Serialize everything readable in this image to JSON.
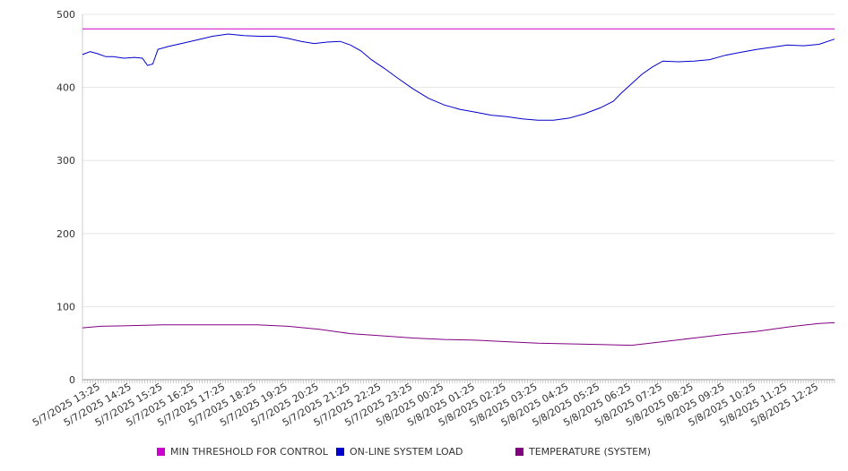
{
  "chart_data": {
    "type": "line",
    "title": "",
    "xlabel": "",
    "ylabel": "",
    "ylim": [
      0,
      500
    ],
    "yticks": [
      0,
      100,
      200,
      300,
      400,
      500
    ],
    "grid": true,
    "legend_placement": "bottom",
    "x_tick_labels": [
      "5/7/2025 13:25",
      "5/7/2025 14:25",
      "5/7/2025 15:25",
      "5/7/2025 16:25",
      "5/7/2025 17:25",
      "5/7/2025 18:25",
      "5/7/2025 19:25",
      "5/7/2025 20:25",
      "5/7/2025 21:25",
      "5/7/2025 22:25",
      "5/7/2025 23:25",
      "5/8/2025 00:25",
      "5/8/2025 01:25",
      "5/8/2025 02:25",
      "5/8/2025 03:25",
      "5/8/2025 04:25",
      "5/8/2025 05:25",
      "5/8/2025 06:25",
      "5/8/2025 07:25",
      "5/8/2025 08:25",
      "5/8/2025 09:25",
      "5/8/2025 10:25",
      "5/8/2025 11:25",
      "5/8/2025 12:25"
    ],
    "series": [
      {
        "name": "MIN THRESHOLD FOR CONTROL",
        "color": "#cc00cc",
        "points": [
          [
            "5/7/2025 12:50",
            480
          ],
          [
            "5/8/2025 12:55",
            480
          ]
        ]
      },
      {
        "name": "ON-LINE SYSTEM LOAD",
        "color": "#0000cc",
        "points": [
          [
            "5/7/2025 12:50",
            445
          ],
          [
            "5/7/2025 13:05",
            449
          ],
          [
            "5/7/2025 13:20",
            446
          ],
          [
            "5/7/2025 13:35",
            442
          ],
          [
            "5/7/2025 13:50",
            442
          ],
          [
            "5/7/2025 14:10",
            440
          ],
          [
            "5/7/2025 14:30",
            441
          ],
          [
            "5/7/2025 14:45",
            440
          ],
          [
            "5/7/2025 14:55",
            430
          ],
          [
            "5/7/2025 15:05",
            432
          ],
          [
            "5/7/2025 15:15",
            452
          ],
          [
            "5/7/2025 15:35",
            456
          ],
          [
            "5/7/2025 16:00",
            460
          ],
          [
            "5/7/2025 16:30",
            465
          ],
          [
            "5/7/2025 17:00",
            470
          ],
          [
            "5/7/2025 17:30",
            473
          ],
          [
            "5/7/2025 18:00",
            471
          ],
          [
            "5/7/2025 18:30",
            470
          ],
          [
            "5/7/2025 19:00",
            470
          ],
          [
            "5/7/2025 19:25",
            467
          ],
          [
            "5/7/2025 19:50",
            463
          ],
          [
            "5/7/2025 20:15",
            460
          ],
          [
            "5/7/2025 20:40",
            462
          ],
          [
            "5/7/2025 21:05",
            463
          ],
          [
            "5/7/2025 21:25",
            458
          ],
          [
            "5/7/2025 21:45",
            450
          ],
          [
            "5/7/2025 22:05",
            438
          ],
          [
            "5/7/2025 22:30",
            426
          ],
          [
            "5/7/2025 22:55",
            413
          ],
          [
            "5/7/2025 23:25",
            398
          ],
          [
            "5/7/2025 23:55",
            385
          ],
          [
            "5/8/2025 00:25",
            376
          ],
          [
            "5/8/2025 00:55",
            370
          ],
          [
            "5/8/2025 01:25",
            366
          ],
          [
            "5/8/2025 01:55",
            362
          ],
          [
            "5/8/2025 02:25",
            360
          ],
          [
            "5/8/2025 02:55",
            357
          ],
          [
            "5/8/2025 03:25",
            355
          ],
          [
            "5/8/2025 03:55",
            355
          ],
          [
            "5/8/2025 04:25",
            358
          ],
          [
            "5/8/2025 04:55",
            364
          ],
          [
            "5/8/2025 05:25",
            372
          ],
          [
            "5/8/2025 05:50",
            381
          ],
          [
            "5/8/2025 06:05",
            392
          ],
          [
            "5/8/2025 06:25",
            405
          ],
          [
            "5/8/2025 06:45",
            418
          ],
          [
            "5/8/2025 07:05",
            428
          ],
          [
            "5/8/2025 07:25",
            436
          ],
          [
            "5/8/2025 07:55",
            435
          ],
          [
            "5/8/2025 08:25",
            436
          ],
          [
            "5/8/2025 08:55",
            438
          ],
          [
            "5/8/2025 09:25",
            444
          ],
          [
            "5/8/2025 09:55",
            448
          ],
          [
            "5/8/2025 10:25",
            452
          ],
          [
            "5/8/2025 10:55",
            455
          ],
          [
            "5/8/2025 11:25",
            458
          ],
          [
            "5/8/2025 11:55",
            457
          ],
          [
            "5/8/2025 12:25",
            459
          ],
          [
            "5/8/2025 12:55",
            466
          ]
        ]
      },
      {
        "name": "TEMPERATURE (SYSTEM)",
        "color": "#800080",
        "points": [
          [
            "5/7/2025 12:50",
            71
          ],
          [
            "5/7/2025 13:25",
            73
          ],
          [
            "5/7/2025 14:25",
            74
          ],
          [
            "5/7/2025 15:25",
            75
          ],
          [
            "5/7/2025 16:25",
            75
          ],
          [
            "5/7/2025 17:25",
            75
          ],
          [
            "5/7/2025 18:25",
            75
          ],
          [
            "5/7/2025 19:25",
            73
          ],
          [
            "5/7/2025 20:25",
            69
          ],
          [
            "5/7/2025 21:25",
            63
          ],
          [
            "5/7/2025 22:25",
            60
          ],
          [
            "5/7/2025 23:25",
            57
          ],
          [
            "5/8/2025 00:25",
            55
          ],
          [
            "5/8/2025 01:25",
            54
          ],
          [
            "5/8/2025 02:25",
            52
          ],
          [
            "5/8/2025 03:25",
            50
          ],
          [
            "5/8/2025 04:25",
            49
          ],
          [
            "5/8/2025 05:25",
            48
          ],
          [
            "5/8/2025 06:25",
            47
          ],
          [
            "5/8/2025 07:25",
            52
          ],
          [
            "5/8/2025 08:25",
            57
          ],
          [
            "5/8/2025 09:25",
            62
          ],
          [
            "5/8/2025 10:25",
            66
          ],
          [
            "5/8/2025 11:25",
            72
          ],
          [
            "5/8/2025 12:25",
            77
          ],
          [
            "5/8/2025 12:55",
            78
          ]
        ]
      }
    ]
  }
}
